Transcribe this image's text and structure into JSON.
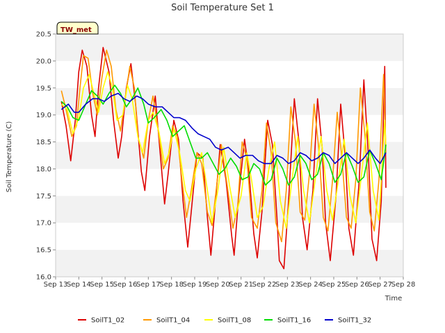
{
  "chart_data": {
    "type": "line",
    "title": "Soil Temperature Set 1",
    "xlabel": "Time",
    "ylabel": "Soil Temperature (C)",
    "annotation": "TW_met",
    "xlim": [
      13,
      28
    ],
    "ylim": [
      16.0,
      20.5
    ],
    "grid": "alternating horizontal bands",
    "legend_position": "bottom",
    "x_ticks": [
      "Sep 13",
      "Sep 14",
      "Sep 15",
      "Sep 16",
      "Sep 17",
      "Sep 18",
      "Sep 19",
      "Sep 20",
      "Sep 21",
      "Sep 22",
      "Sep 23",
      "Sep 24",
      "Sep 25",
      "Sep 26",
      "Sep 27",
      "Sep 28"
    ],
    "y_ticks": [
      "16.0",
      "16.5",
      "17.0",
      "17.5",
      "18.0",
      "18.5",
      "19.0",
      "19.5",
      "20.0",
      "20.5"
    ],
    "series": [
      {
        "name": "SoilT1_02",
        "color": "#dd0000",
        "x": [
          13.25,
          13.45,
          13.65,
          13.85,
          14.0,
          14.15,
          14.35,
          14.55,
          14.7,
          14.85,
          15.05,
          15.3,
          15.5,
          15.7,
          15.85,
          16.05,
          16.25,
          16.45,
          16.7,
          16.85,
          17.05,
          17.3,
          17.45,
          17.7,
          17.85,
          18.1,
          18.3,
          18.5,
          18.7,
          18.85,
          19.1,
          19.35,
          19.55,
          19.7,
          19.9,
          20.1,
          20.35,
          20.6,
          20.7,
          20.9,
          21.15,
          21.35,
          21.55,
          21.7,
          21.9,
          22.15,
          22.35,
          22.55,
          22.65,
          22.85,
          23.05,
          23.3,
          23.5,
          23.65,
          23.85,
          24.1,
          24.3,
          24.5,
          24.65,
          24.85,
          25.1,
          25.3,
          25.5,
          25.65,
          25.85,
          26.1,
          26.3,
          26.5,
          26.65,
          26.85,
          27.05,
          27.2,
          27.25
        ],
        "y": [
          19.25,
          18.8,
          18.15,
          18.9,
          19.8,
          20.2,
          19.9,
          19.0,
          18.6,
          19.5,
          20.25,
          19.8,
          18.9,
          18.2,
          18.6,
          19.5,
          19.95,
          19.2,
          17.95,
          17.6,
          18.6,
          19.35,
          18.6,
          17.35,
          17.9,
          18.9,
          18.55,
          17.4,
          16.55,
          17.2,
          18.3,
          18.2,
          17.1,
          16.4,
          17.4,
          18.45,
          17.8,
          16.75,
          16.4,
          17.5,
          18.55,
          17.9,
          16.8,
          16.35,
          17.2,
          18.9,
          18.45,
          17.1,
          16.3,
          16.15,
          17.4,
          19.3,
          18.5,
          17.1,
          16.5,
          17.6,
          19.3,
          18.4,
          17.0,
          16.3,
          17.5,
          19.2,
          18.2,
          16.9,
          16.4,
          17.8,
          19.65,
          18.2,
          16.7,
          16.3,
          17.4,
          19.9,
          17.65
        ]
      },
      {
        "name": "SoilT1_04",
        "color": "#ff9900",
        "x": [
          13.25,
          13.45,
          13.7,
          13.9,
          14.05,
          14.2,
          14.4,
          14.6,
          14.8,
          15.0,
          15.2,
          15.4,
          15.6,
          15.8,
          16.0,
          16.2,
          16.4,
          16.55,
          16.8,
          17.0,
          17.2,
          17.4,
          17.65,
          17.85,
          18.05,
          18.25,
          18.45,
          18.65,
          18.85,
          19.1,
          19.3,
          19.55,
          19.75,
          19.95,
          20.15,
          20.4,
          20.65,
          20.85,
          21.05,
          21.25,
          21.45,
          21.7,
          21.9,
          22.1,
          22.3,
          22.5,
          22.75,
          22.95,
          23.15,
          23.35,
          23.55,
          23.75,
          23.95,
          24.15,
          24.35,
          24.55,
          24.75,
          24.95,
          25.15,
          25.35,
          25.55,
          25.75,
          25.95,
          26.15,
          26.35,
          26.55,
          26.75,
          26.95,
          27.15,
          27.25
        ],
        "y": [
          19.45,
          19.1,
          18.6,
          18.8,
          19.5,
          20.1,
          20.05,
          19.4,
          19.0,
          19.7,
          20.2,
          19.9,
          19.1,
          18.7,
          19.3,
          19.9,
          19.5,
          18.6,
          18.2,
          18.9,
          19.35,
          18.8,
          18.0,
          18.2,
          18.8,
          18.6,
          17.8,
          17.1,
          17.6,
          18.3,
          18.1,
          17.2,
          16.95,
          17.7,
          18.45,
          17.7,
          16.9,
          17.3,
          18.5,
          18.2,
          17.1,
          16.9,
          17.6,
          18.85,
          18.3,
          17.0,
          16.65,
          17.6,
          19.15,
          18.5,
          17.2,
          17.05,
          17.9,
          19.2,
          18.4,
          17.1,
          16.85,
          17.8,
          19.05,
          18.2,
          17.1,
          16.9,
          17.8,
          19.5,
          18.6,
          17.2,
          16.85,
          17.8,
          19.75,
          18.3
        ]
      },
      {
        "name": "SoilT1_08",
        "color": "#ffff00",
        "x": [
          13.25,
          13.5,
          13.75,
          14.0,
          14.2,
          14.45,
          14.65,
          14.85,
          15.05,
          15.25,
          15.45,
          15.65,
          15.9,
          16.1,
          16.3,
          16.55,
          16.75,
          17.0,
          17.2,
          17.45,
          17.7,
          17.9,
          18.1,
          18.35,
          18.6,
          18.8,
          19.05,
          19.3,
          19.55,
          19.75,
          20.0,
          20.25,
          20.5,
          20.75,
          21.0,
          21.25,
          21.45,
          21.7,
          21.95,
          22.2,
          22.45,
          22.7,
          22.95,
          23.2,
          23.45,
          23.7,
          23.95,
          24.2,
          24.45,
          24.7,
          24.95,
          25.2,
          25.45,
          25.7,
          25.95,
          26.2,
          26.45,
          26.7,
          26.95,
          27.2,
          27.25
        ],
        "y": [
          19.2,
          19.1,
          18.65,
          18.95,
          19.5,
          19.75,
          19.4,
          19.05,
          19.5,
          19.8,
          19.5,
          18.9,
          19.0,
          19.55,
          19.3,
          18.6,
          18.3,
          18.9,
          19.05,
          18.7,
          18.1,
          18.3,
          18.75,
          18.3,
          17.6,
          17.4,
          18.0,
          18.3,
          17.6,
          17.0,
          17.6,
          18.4,
          17.7,
          17.1,
          17.5,
          18.3,
          17.8,
          17.1,
          17.3,
          18.0,
          18.5,
          17.4,
          16.9,
          17.8,
          18.6,
          17.6,
          17.0,
          17.8,
          18.6,
          17.6,
          17.05,
          17.8,
          18.55,
          17.5,
          17.0,
          17.9,
          18.85,
          17.6,
          17.05,
          18.9,
          18.4
        ]
      },
      {
        "name": "SoilT1_16",
        "color": "#00dd00",
        "x": [
          13.25,
          13.5,
          13.75,
          14.0,
          14.3,
          14.55,
          14.8,
          15.05,
          15.3,
          15.55,
          15.8,
          16.05,
          16.3,
          16.55,
          16.8,
          17.0,
          17.25,
          17.55,
          17.8,
          18.05,
          18.3,
          18.55,
          18.8,
          19.05,
          19.3,
          19.55,
          19.8,
          20.05,
          20.3,
          20.55,
          20.8,
          21.05,
          21.3,
          21.55,
          21.8,
          22.05,
          22.3,
          22.55,
          22.8,
          23.05,
          23.3,
          23.55,
          23.8,
          24.05,
          24.3,
          24.55,
          24.8,
          25.05,
          25.3,
          25.55,
          25.8,
          26.05,
          26.3,
          26.55,
          26.8,
          27.05,
          27.25
        ],
        "y": [
          19.25,
          19.15,
          18.95,
          18.9,
          19.2,
          19.45,
          19.35,
          19.2,
          19.4,
          19.55,
          19.4,
          19.15,
          19.3,
          19.5,
          19.2,
          18.85,
          18.95,
          19.1,
          18.9,
          18.6,
          18.7,
          18.8,
          18.5,
          18.2,
          18.2,
          18.3,
          18.1,
          17.9,
          18.0,
          18.2,
          18.05,
          17.8,
          17.85,
          18.1,
          18.0,
          17.7,
          17.8,
          18.2,
          18.0,
          17.7,
          17.85,
          18.25,
          18.1,
          17.8,
          17.9,
          18.3,
          18.1,
          17.75,
          17.9,
          18.3,
          18.05,
          17.75,
          17.85,
          18.35,
          18.1,
          17.8,
          18.45
        ]
      },
      {
        "name": "SoilT1_32",
        "color": "#0000cc",
        "x": [
          13.25,
          13.55,
          13.8,
          14.0,
          14.3,
          14.6,
          14.85,
          15.1,
          15.4,
          15.7,
          15.95,
          16.2,
          16.5,
          16.75,
          17.0,
          17.3,
          17.6,
          17.85,
          18.1,
          18.35,
          18.6,
          18.9,
          19.15,
          19.4,
          19.65,
          19.9,
          20.15,
          20.45,
          20.7,
          20.95,
          21.2,
          21.5,
          21.75,
          22.0,
          22.3,
          22.55,
          22.8,
          23.05,
          23.3,
          23.55,
          23.8,
          24.05,
          24.3,
          24.55,
          24.8,
          25.05,
          25.3,
          25.55,
          25.8,
          26.05,
          26.3,
          26.55,
          26.8,
          27.0,
          27.25
        ],
        "y": [
          19.1,
          19.2,
          19.05,
          19.05,
          19.2,
          19.3,
          19.3,
          19.25,
          19.35,
          19.4,
          19.3,
          19.25,
          19.35,
          19.3,
          19.2,
          19.15,
          19.15,
          19.05,
          18.95,
          18.95,
          18.9,
          18.75,
          18.65,
          18.6,
          18.55,
          18.4,
          18.35,
          18.4,
          18.3,
          18.2,
          18.25,
          18.25,
          18.15,
          18.1,
          18.1,
          18.25,
          18.2,
          18.1,
          18.15,
          18.3,
          18.25,
          18.15,
          18.2,
          18.3,
          18.25,
          18.1,
          18.2,
          18.3,
          18.2,
          18.1,
          18.2,
          18.35,
          18.2,
          18.1,
          18.3
        ]
      }
    ]
  }
}
